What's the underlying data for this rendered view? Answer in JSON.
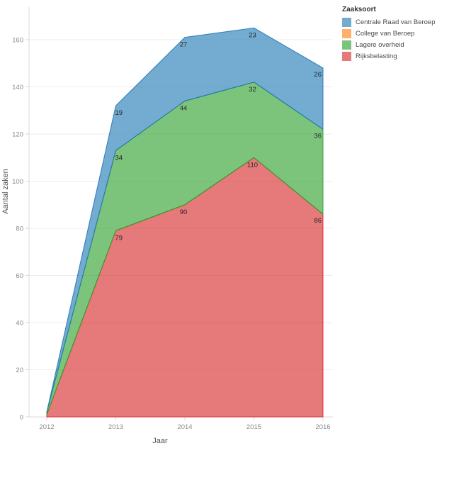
{
  "legend": {
    "title": "Zaaksoort"
  },
  "axes": {
    "y_title": "Aantal zaken",
    "x_title": "Jaar",
    "y_ticks": [
      0,
      20,
      40,
      60,
      80,
      100,
      120,
      140,
      160
    ],
    "x_ticks": [
      "2012",
      "2013",
      "2014",
      "2015",
      "2016"
    ]
  },
  "chart_data": {
    "type": "area",
    "stacked": true,
    "title": "",
    "xlabel": "Jaar",
    "ylabel": "Aantal zaken",
    "x": [
      2012,
      2013,
      2014,
      2015,
      2016
    ],
    "series": [
      {
        "name": "Centrale Raad van Beroep",
        "color": "#1f77b4",
        "values": [
          0,
          19,
          27,
          23,
          26
        ]
      },
      {
        "name": "College van Beroep",
        "color": "#ff7f0e",
        "values": [
          0,
          0,
          0,
          0,
          0
        ]
      },
      {
        "name": "Lagere overheid",
        "color": "#2ca02c",
        "values": [
          1,
          34,
          44,
          32,
          36
        ]
      },
      {
        "name": "Rijksbelasting",
        "color": "#d62728",
        "values": [
          1,
          79,
          90,
          110,
          86
        ]
      }
    ],
    "label_years": [
      2013,
      2014,
      2015,
      2016
    ],
    "ylim": [
      0,
      174
    ],
    "grid": true,
    "legend_position": "top-right",
    "fill_opacity": 0.62,
    "colors": {
      "gridline": "#ececec",
      "axis_line": "#d9d9d9",
      "tick_label": "#8a8a8a",
      "axis_title": "#4f4f4f",
      "mark_label": "#262626"
    }
  }
}
